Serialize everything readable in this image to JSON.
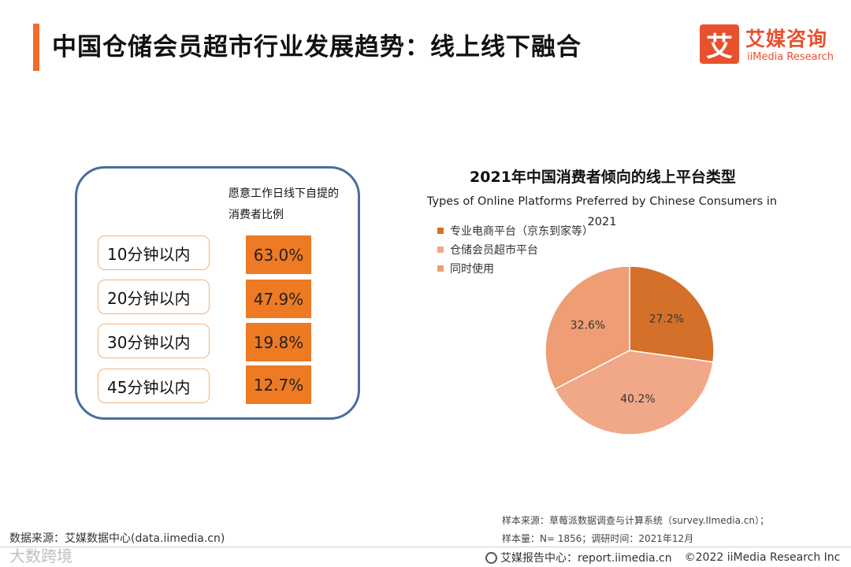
{
  "header": {
    "title": "中国仓储会员超市行业发展趋势：线上线下融合",
    "logo_mark": "艾",
    "logo_cn": "艾媒咨询",
    "logo_en": "iiMedia Research"
  },
  "left_panel": {
    "header": "愿意工作日线下自提的消费者比例",
    "rows": [
      {
        "label": "10分钟以内",
        "value": "63.0%"
      },
      {
        "label": "20分钟以内",
        "value": "47.9%"
      },
      {
        "label": "30分钟以内",
        "value": "19.8%"
      },
      {
        "label": "45分钟以内",
        "value": "12.7%"
      }
    ]
  },
  "chart_data": {
    "type": "pie",
    "title": "2021年中国消费者倾向的线上平台类型",
    "subtitle": "Types of Online Platforms Preferred by Chinese Consumers in 2021",
    "categories": [
      "专业电商平台（京东到家等）",
      "仓储会员超市平台",
      "同时使用"
    ],
    "values": [
      27.2,
      40.2,
      32.6
    ],
    "labels": [
      "27.2%",
      "40.2%",
      "32.6%"
    ],
    "colors": [
      "#d4702a",
      "#f0a888",
      "#ee9d74"
    ],
    "legend_position": "top-left"
  },
  "footnotes": {
    "sample_source": "样本来源：草莓派数据调查与计算系统（survey.IImedia.cn）；",
    "sample_size": "样本量：N= 1856；调研时间：2021年12月",
    "data_source": "数据来源：艾媒数据中心(data.iimedia.cn)",
    "watermark": "大数跨境",
    "report_center": "艾媒报告中心：report.iimedia.cn",
    "copyright": "©2022  iiMedia Research  Inc"
  }
}
